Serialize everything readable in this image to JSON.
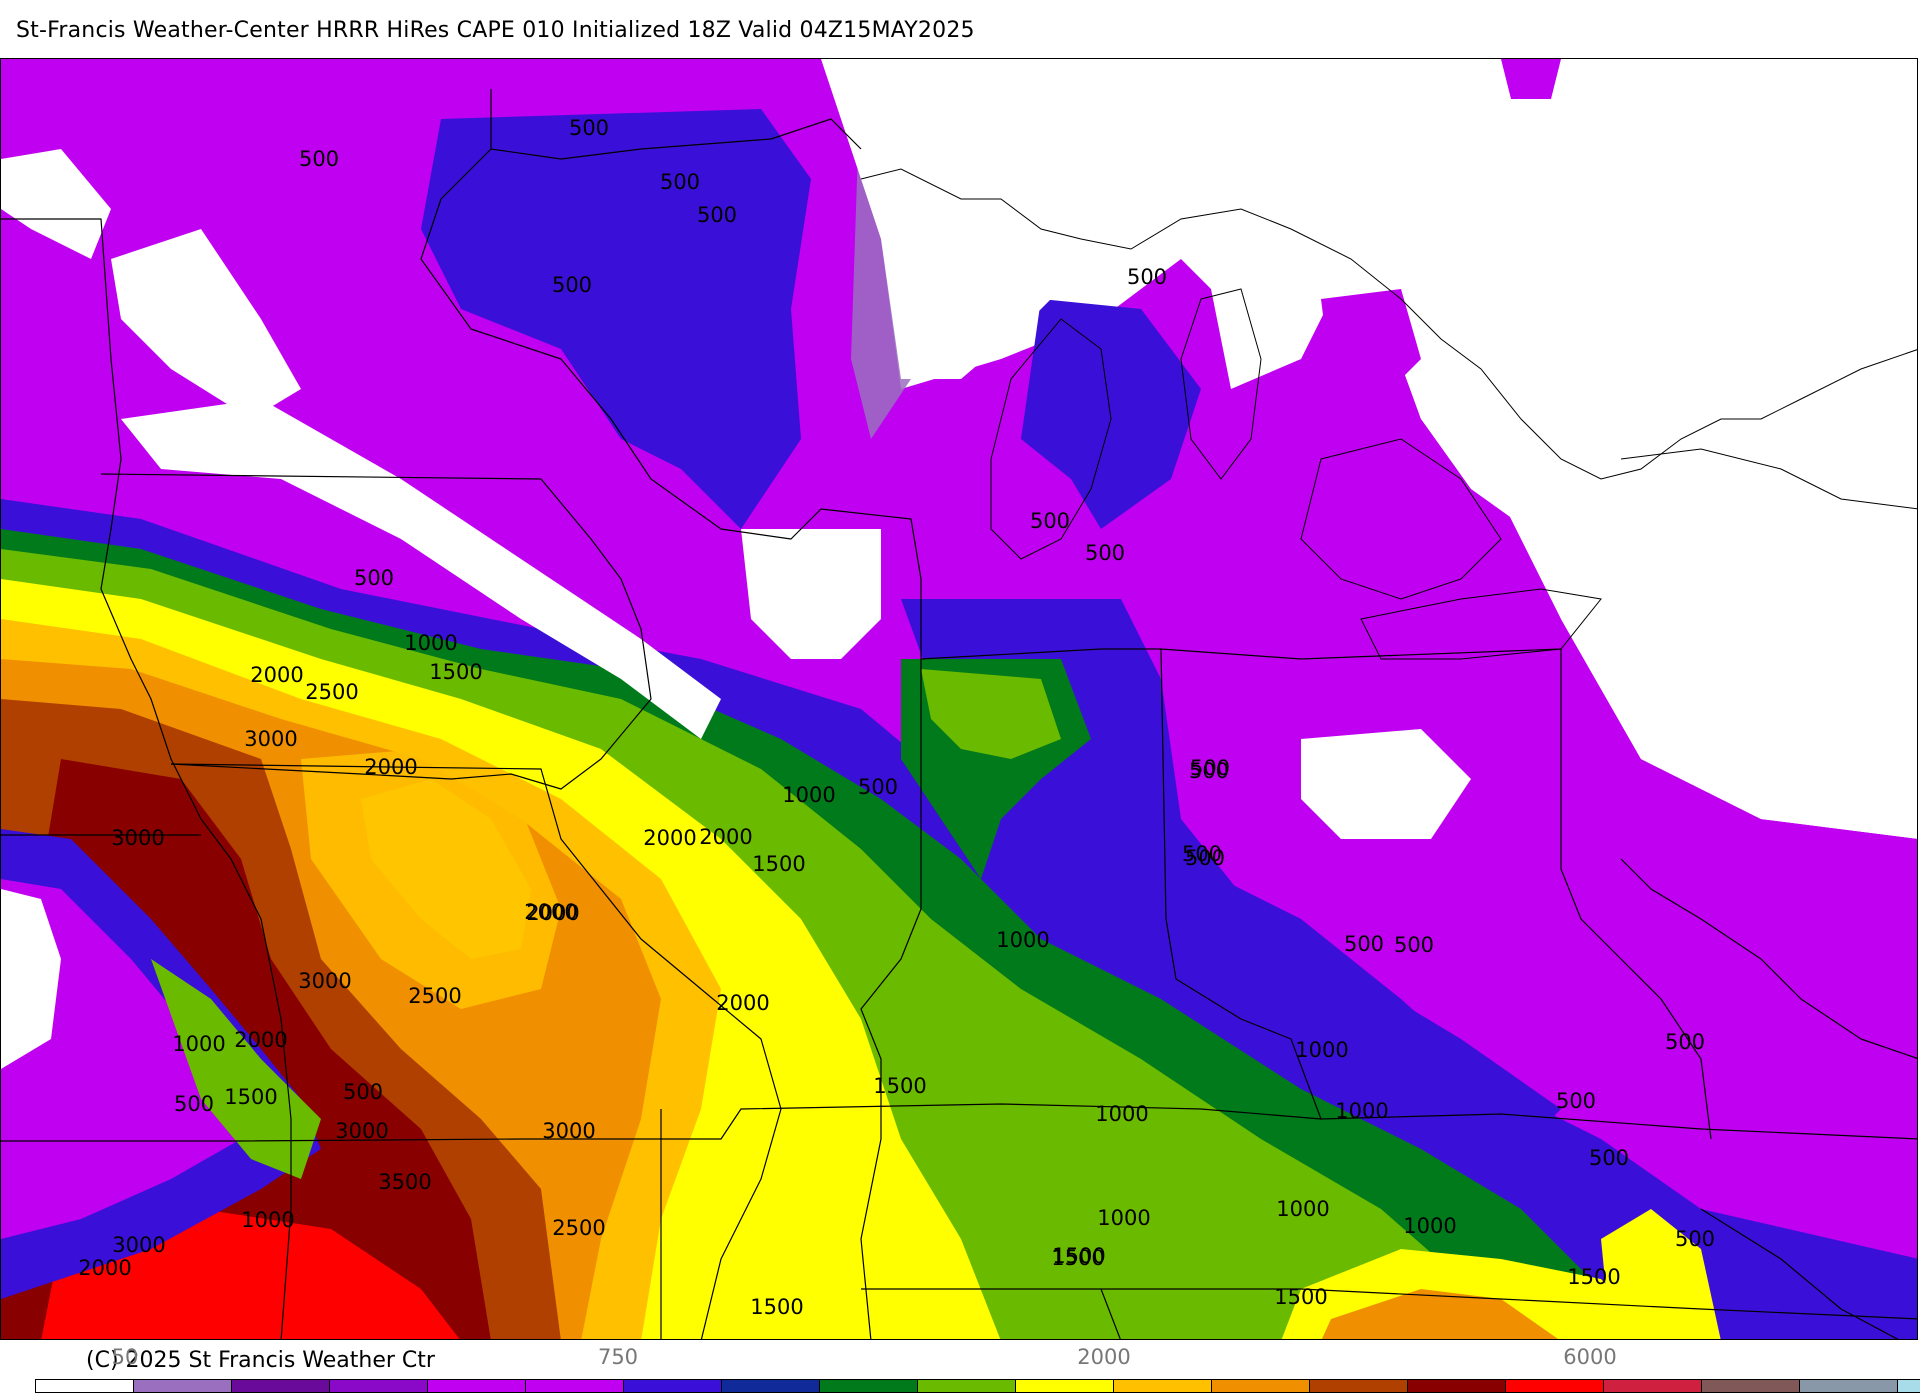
{
  "header": {
    "title": "St-Francis Weather-Center HRRR HiRes CAPE  010 Initialized  18Z Valid 04Z15MAY2025"
  },
  "footer": {
    "copyright": "(C) 2025 St Francis Weather Ctr"
  },
  "colorbar": {
    "colors": [
      "#ffffff",
      "#9a6fc0",
      "#6a0a9a",
      "#8a08c8",
      "#c000f0",
      "#c000f0",
      "#3a10d8",
      "#102a9a",
      "#007a1a",
      "#6aba00",
      "#ffff00",
      "#ffc000",
      "#f09000",
      "#b04000",
      "#880000",
      "#ff0000",
      "#d02040",
      "#805858",
      "#8898a8",
      "#a8dce8"
    ],
    "tick_labels": [
      "50",
      "750",
      "2000",
      "6000"
    ]
  },
  "palette": {
    "white": "#ffffff",
    "lav": "#9a6fc0",
    "purple": "#6a0a9a",
    "magenta": "#c000f0",
    "blue": "#3a10d8",
    "navy": "#102a9a",
    "dgreen": "#007a1a",
    "lgreen": "#6aba00",
    "yellow": "#ffff00",
    "gold": "#ffc000",
    "orange": "#f09000",
    "brown": "#b04000",
    "dred": "#880000",
    "red": "#ff0000"
  },
  "contour_labels": [
    "500",
    "500",
    "500",
    "500",
    "500",
    "500",
    "500",
    "1000",
    "1500",
    "2000",
    "2500",
    "3000",
    "2000",
    "3000",
    "1000",
    "500",
    "2000",
    "2000",
    "1500",
    "2000",
    "2000",
    "3000",
    "2500",
    "2000",
    "1000",
    "500",
    "2000",
    "1500",
    "500",
    "3000",
    "3500",
    "3000",
    "2500",
    "1000",
    "2000",
    "3000",
    "1500",
    "1500",
    "1000",
    "1000",
    "500",
    "500",
    "500",
    "1000",
    "1000",
    "500",
    "500",
    "500",
    "500",
    "1000",
    "1000",
    "1000",
    "1500",
    "1500",
    "1500",
    "1500",
    "500",
    "500",
    "500",
    "500",
    "500"
  ]
}
